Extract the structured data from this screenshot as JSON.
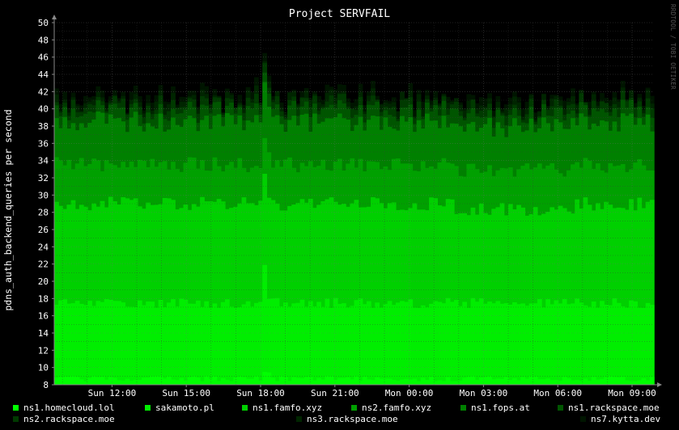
{
  "chart_data": {
    "type": "area",
    "title": "Project SERVFAIL",
    "ylabel": "pdns_auth_backend_queries per second",
    "xlabel": "",
    "watermark": "RRDTOOL / TOBI OETIKER",
    "ylim": [
      8,
      50
    ],
    "yticks": [
      8,
      10,
      12,
      14,
      16,
      18,
      20,
      22,
      24,
      26,
      28,
      30,
      32,
      34,
      36,
      38,
      40,
      42,
      44,
      46,
      48,
      50
    ],
    "x_start": "Sun 09:40",
    "x_end": "Mon 09:40",
    "xticks": [
      "Sun 12:00",
      "Sun 15:00",
      "Sun 18:00",
      "Sun 21:00",
      "Mon 00:00",
      "Mon 03:00",
      "Mon 06:00",
      "Mon 09:00"
    ],
    "grid": true,
    "legend_placement": "bottom",
    "stacked": true,
    "sample_interval": "10 min",
    "series": [
      {
        "name": "ns1.homecloud.lol",
        "color": "#00ff00",
        "approx_cumulative_top": 8.7
      },
      {
        "name": "sakamoto.pl",
        "color": "#00ee00",
        "approx_cumulative_top": 17.5
      },
      {
        "name": "ns1.famfo.xyz",
        "color": "#00d000",
        "approx_cumulative_top": 29.0
      },
      {
        "name": "ns2.famfo.xyz",
        "color": "#00a000",
        "approx_cumulative_top": 33.5
      },
      {
        "name": "ns1.fops.at",
        "color": "#008000",
        "approx_cumulative_top": 38.5
      },
      {
        "name": "ns1.rackspace.moe",
        "color": "#005500",
        "approx_cumulative_top": 39.8
      },
      {
        "name": "ns2.rackspace.moe",
        "color": "#003a00",
        "approx_cumulative_top": 40.5
      },
      {
        "name": "ns3.rackspace.moe",
        "color": "#002500",
        "approx_cumulative_top": 41.0
      },
      {
        "name": "ns7.kytta.dev",
        "color": "#001500",
        "approx_cumulative_top": 41.5
      }
    ],
    "spike": {
      "time": "Sun 18:00",
      "total": 45.5
    }
  }
}
